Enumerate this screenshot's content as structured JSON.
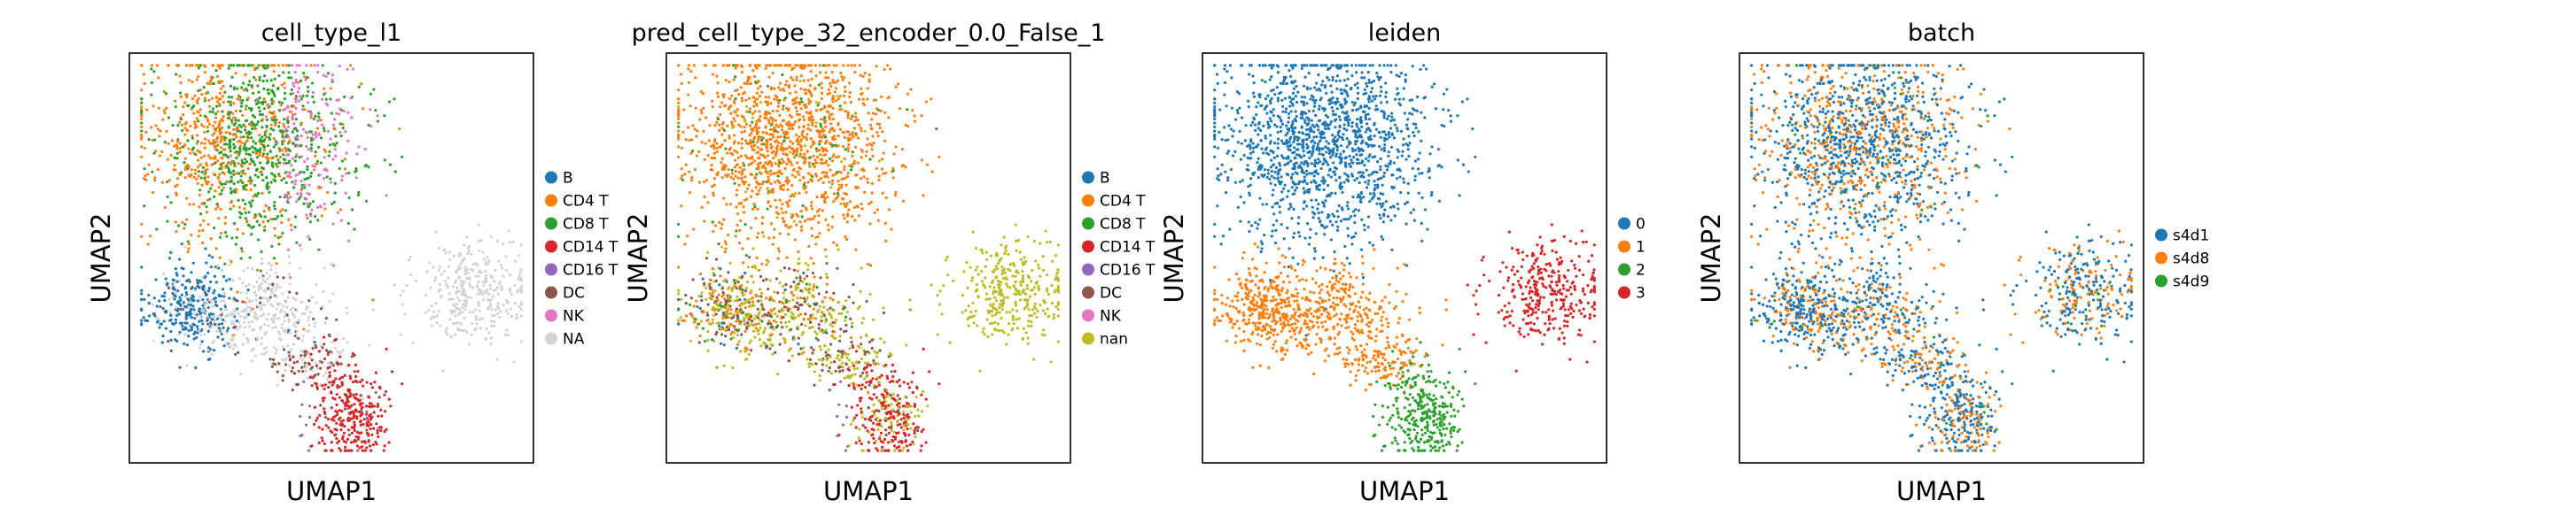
{
  "chart_data": [
    {
      "type": "scatter",
      "title": "cell_type_l1",
      "xlabel": "UMAP1",
      "ylabel": "UMAP2",
      "legend_position": "right",
      "grid": false,
      "ticks": false,
      "series": [
        {
          "name": "B",
          "color": "#1f77b4"
        },
        {
          "name": "CD4 T",
          "color": "#ff7f0e"
        },
        {
          "name": "CD8 T",
          "color": "#2ca02c"
        },
        {
          "name": "CD14 T",
          "color": "#d62728"
        },
        {
          "name": "CD16 T",
          "color": "#9467bd"
        },
        {
          "name": "DC",
          "color": "#8c564b"
        },
        {
          "name": "NK",
          "color": "#e377c2"
        },
        {
          "name": "NA",
          "color": "#d3d3d3"
        }
      ]
    },
    {
      "type": "scatter",
      "title": "pred_cell_type_32_encoder_0.0_False_1",
      "xlabel": "UMAP1",
      "ylabel": "UMAP2",
      "legend_position": "right",
      "grid": false,
      "ticks": false,
      "series": [
        {
          "name": "B",
          "color": "#1f77b4"
        },
        {
          "name": "CD4 T",
          "color": "#ff7f0e"
        },
        {
          "name": "CD8 T",
          "color": "#2ca02c"
        },
        {
          "name": "CD14 T",
          "color": "#d62728"
        },
        {
          "name": "CD16 T",
          "color": "#9467bd"
        },
        {
          "name": "DC",
          "color": "#8c564b"
        },
        {
          "name": "NK",
          "color": "#e377c2"
        },
        {
          "name": "nan",
          "color": "#bcbd22"
        }
      ]
    },
    {
      "type": "scatter",
      "title": "leiden",
      "xlabel": "UMAP1",
      "ylabel": "UMAP2",
      "legend_position": "right",
      "grid": false,
      "ticks": false,
      "series": [
        {
          "name": "0",
          "color": "#1f77b4"
        },
        {
          "name": "1",
          "color": "#ff7f0e"
        },
        {
          "name": "2",
          "color": "#2ca02c"
        },
        {
          "name": "3",
          "color": "#d62728"
        }
      ]
    },
    {
      "type": "scatter",
      "title": "batch",
      "xlabel": "UMAP1",
      "ylabel": "UMAP2",
      "legend_position": "right",
      "grid": false,
      "ticks": false,
      "series": [
        {
          "name": "s4d1",
          "color": "#1f77b4"
        },
        {
          "name": "s4d8",
          "color": "#ff7f0e"
        },
        {
          "name": "s4d9",
          "color": "#2ca02c"
        }
      ]
    }
  ]
}
